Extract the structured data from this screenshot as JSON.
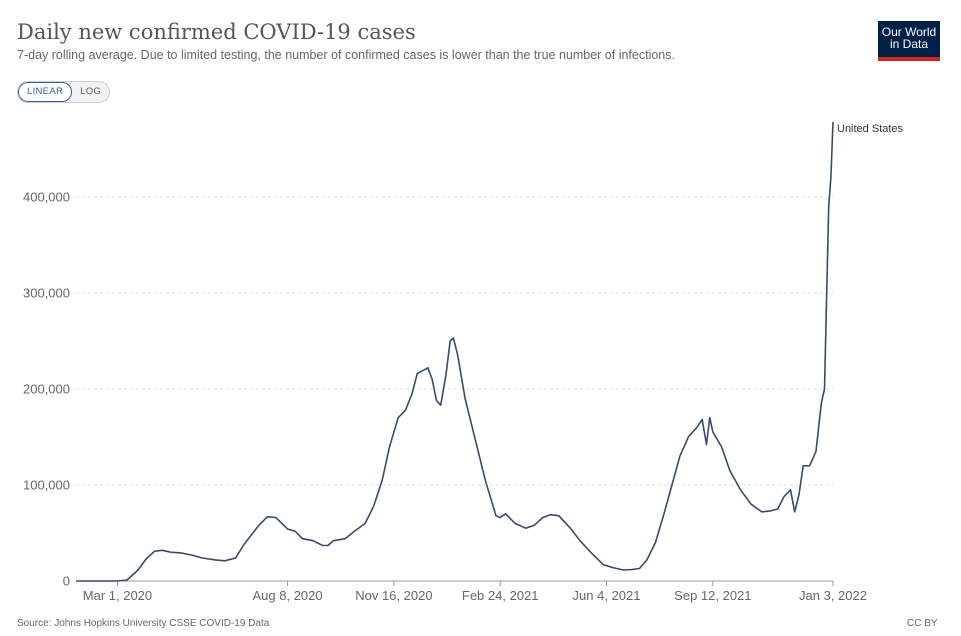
{
  "header": {
    "title": "Daily new confirmed COVID-19 cases",
    "subtitle": "7-day rolling average. Due to limited testing, the number of confirmed cases is lower than the true number of infections.",
    "logo_line1": "Our World",
    "logo_line2": "in Data"
  },
  "scale_toggle": {
    "linear_label": "LINEAR",
    "log_label": "LOG",
    "selected": "LINEAR"
  },
  "footer": {
    "source": "Source: Johns Hopkins University CSSE COVID-19 Data",
    "license": "CC BY"
  },
  "colors": {
    "line": "#3b4a6b",
    "grid": "#dddddd",
    "logo_bg": "#002147",
    "logo_accent": "#ce261e",
    "toggle_active": "#3360a9"
  },
  "chart_data": {
    "type": "line",
    "title": "Daily new confirmed COVID-19 cases",
    "subtitle": "7-day rolling average. Due to limited testing, the number of confirmed cases is lower than the true number of infections.",
    "xlabel": "",
    "ylabel": "",
    "y_scale": "linear",
    "ylim": [
      0,
      480000
    ],
    "y_ticks": [
      0,
      100000,
      200000,
      300000,
      400000
    ],
    "y_tick_labels": [
      "0",
      "100,000",
      "200,000",
      "300,000",
      "400,000"
    ],
    "x_ticks": [
      "2020-03-01",
      "2020-08-08",
      "2020-11-16",
      "2021-02-24",
      "2021-06-04",
      "2021-09-12",
      "2022-01-03"
    ],
    "x_tick_labels": [
      "Mar 1, 2020",
      "Aug 8, 2020",
      "Nov 16, 2020",
      "Feb 24, 2021",
      "Jun 4, 2021",
      "Sep 12, 2021",
      "Jan 3, 2022"
    ],
    "xlim": [
      "2020-01-22",
      "2022-01-03"
    ],
    "grid": "horizontal dashed",
    "series": [
      {
        "name": "United States",
        "label_position": "end-of-line",
        "points": [
          [
            "2020-01-22",
            0
          ],
          [
            "2020-03-01",
            0
          ],
          [
            "2020-03-10",
            1000
          ],
          [
            "2020-03-20",
            11000
          ],
          [
            "2020-03-28",
            23000
          ],
          [
            "2020-04-05",
            31000
          ],
          [
            "2020-04-12",
            32000
          ],
          [
            "2020-04-20",
            30000
          ],
          [
            "2020-05-01",
            29000
          ],
          [
            "2020-05-10",
            27000
          ],
          [
            "2020-05-20",
            24000
          ],
          [
            "2020-06-01",
            22000
          ],
          [
            "2020-06-10",
            21000
          ],
          [
            "2020-06-20",
            24000
          ],
          [
            "2020-06-28",
            38000
          ],
          [
            "2020-07-05",
            48000
          ],
          [
            "2020-07-12",
            58000
          ],
          [
            "2020-07-20",
            67000
          ],
          [
            "2020-07-28",
            66000
          ],
          [
            "2020-08-08",
            54000
          ],
          [
            "2020-08-15",
            52000
          ],
          [
            "2020-08-22",
            44000
          ],
          [
            "2020-09-01",
            42000
          ],
          [
            "2020-09-10",
            37000
          ],
          [
            "2020-09-15",
            37000
          ],
          [
            "2020-09-20",
            42000
          ],
          [
            "2020-10-01",
            44000
          ],
          [
            "2020-10-10",
            52000
          ],
          [
            "2020-10-20",
            60000
          ],
          [
            "2020-10-28",
            78000
          ],
          [
            "2020-11-05",
            105000
          ],
          [
            "2020-11-12",
            140000
          ],
          [
            "2020-11-20",
            170000
          ],
          [
            "2020-11-27",
            178000
          ],
          [
            "2020-12-03",
            195000
          ],
          [
            "2020-12-08",
            216000
          ],
          [
            "2020-12-15",
            220000
          ],
          [
            "2020-12-18",
            222000
          ],
          [
            "2020-12-22",
            210000
          ],
          [
            "2020-12-26",
            188000
          ],
          [
            "2020-12-30",
            183000
          ],
          [
            "2021-01-04",
            215000
          ],
          [
            "2021-01-08",
            250000
          ],
          [
            "2021-01-11",
            253000
          ],
          [
            "2021-01-15",
            235000
          ],
          [
            "2021-01-22",
            190000
          ],
          [
            "2021-02-01",
            145000
          ],
          [
            "2021-02-10",
            105000
          ],
          [
            "2021-02-20",
            68000
          ],
          [
            "2021-02-24",
            66000
          ],
          [
            "2021-03-01",
            70000
          ],
          [
            "2021-03-10",
            60000
          ],
          [
            "2021-03-20",
            55000
          ],
          [
            "2021-03-28",
            58000
          ],
          [
            "2021-04-05",
            66000
          ],
          [
            "2021-04-12",
            69000
          ],
          [
            "2021-04-20",
            68000
          ],
          [
            "2021-05-01",
            55000
          ],
          [
            "2021-05-10",
            42000
          ],
          [
            "2021-05-20",
            30000
          ],
          [
            "2021-06-01",
            17000
          ],
          [
            "2021-06-10",
            14000
          ],
          [
            "2021-06-20",
            11500
          ],
          [
            "2021-06-28",
            12000
          ],
          [
            "2021-07-05",
            13000
          ],
          [
            "2021-07-12",
            22000
          ],
          [
            "2021-07-20",
            40000
          ],
          [
            "2021-07-28",
            70000
          ],
          [
            "2021-08-05",
            102000
          ],
          [
            "2021-08-12",
            130000
          ],
          [
            "2021-08-20",
            150000
          ],
          [
            "2021-08-28",
            160000
          ],
          [
            "2021-09-02",
            168000
          ],
          [
            "2021-09-06",
            142000
          ],
          [
            "2021-09-09",
            170000
          ],
          [
            "2021-09-12",
            155000
          ],
          [
            "2021-09-20",
            140000
          ],
          [
            "2021-09-28",
            115000
          ],
          [
            "2021-10-08",
            95000
          ],
          [
            "2021-10-18",
            80000
          ],
          [
            "2021-10-28",
            72000
          ],
          [
            "2021-11-05",
            73000
          ],
          [
            "2021-11-12",
            75000
          ],
          [
            "2021-11-18",
            88000
          ],
          [
            "2021-11-24",
            95000
          ],
          [
            "2021-11-28",
            72000
          ],
          [
            "2021-12-02",
            90000
          ],
          [
            "2021-12-06",
            120000
          ],
          [
            "2021-12-12",
            120000
          ],
          [
            "2021-12-18",
            135000
          ],
          [
            "2021-12-23",
            185000
          ],
          [
            "2021-12-26",
            200000
          ],
          [
            "2021-12-30",
            390000
          ],
          [
            "2022-01-01",
            420000
          ],
          [
            "2022-01-03",
            478000
          ]
        ]
      }
    ]
  }
}
